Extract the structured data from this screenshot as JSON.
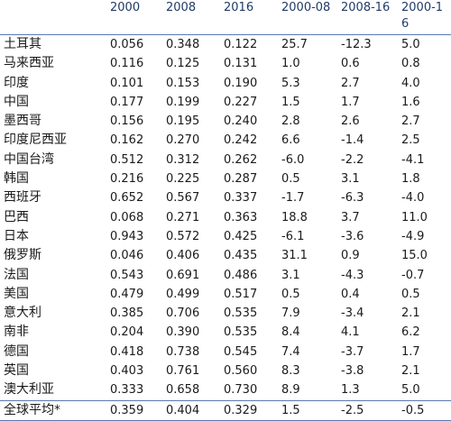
{
  "table": {
    "columns": [
      "",
      "2000",
      "2008",
      "2016",
      "2000-08",
      "2008-16",
      "2000-16"
    ],
    "rows": [
      [
        "土耳其",
        "0.056",
        "0.348",
        "0.122",
        "25.7",
        "-12.3",
        "5.0"
      ],
      [
        "马来西亚",
        "0.116",
        "0.125",
        "0.131",
        "1.0",
        "0.6",
        "0.8"
      ],
      [
        "印度",
        "0.101",
        "0.153",
        "0.190",
        "5.3",
        "2.7",
        "4.0"
      ],
      [
        "中国",
        "0.177",
        "0.199",
        "0.227",
        "1.5",
        "1.7",
        "1.6"
      ],
      [
        "墨西哥",
        "0.156",
        "0.195",
        "0.240",
        "2.8",
        "2.6",
        "2.7"
      ],
      [
        "印度尼西亚",
        "0.162",
        "0.270",
        "0.242",
        "6.6",
        "-1.4",
        "2.5"
      ],
      [
        "中国台湾",
        "0.512",
        "0.312",
        "0.262",
        "-6.0",
        "-2.2",
        "-4.1"
      ],
      [
        "韩国",
        "0.216",
        "0.225",
        "0.287",
        "0.5",
        "3.1",
        "1.8"
      ],
      [
        "西班牙",
        "0.652",
        "0.567",
        "0.337",
        "-1.7",
        "-6.3",
        "-4.0"
      ],
      [
        "巴西",
        "0.068",
        "0.271",
        "0.363",
        "18.8",
        "3.7",
        "11.0"
      ],
      [
        "日本",
        "0.943",
        "0.572",
        "0.425",
        "-6.1",
        "-3.6",
        "-4.9"
      ],
      [
        "俄罗斯",
        "0.046",
        "0.406",
        "0.435",
        "31.1",
        "0.9",
        "15.0"
      ],
      [
        "法国",
        "0.543",
        "0.691",
        "0.486",
        "3.1",
        "-4.3",
        "-0.7"
      ],
      [
        "美国",
        "0.479",
        "0.499",
        "0.517",
        "0.5",
        "0.4",
        "0.5"
      ],
      [
        "意大利",
        "0.385",
        "0.706",
        "0.535",
        "7.9",
        "-3.4",
        "2.1"
      ],
      [
        "南非",
        "0.204",
        "0.390",
        "0.535",
        "8.4",
        "4.1",
        "6.2"
      ],
      [
        "德国",
        "0.418",
        "0.738",
        "0.545",
        "7.4",
        "-3.7",
        "1.7"
      ],
      [
        "英国",
        "0.403",
        "0.761",
        "0.560",
        "8.3",
        "-3.8",
        "2.1"
      ],
      [
        "澳大利亚",
        "0.333",
        "0.658",
        "0.730",
        "8.9",
        "1.3",
        "5.0"
      ],
      [
        "全球平均*",
        "0.359",
        "0.404",
        "0.329",
        "1.5",
        "-2.5",
        "-0.5"
      ]
    ]
  }
}
